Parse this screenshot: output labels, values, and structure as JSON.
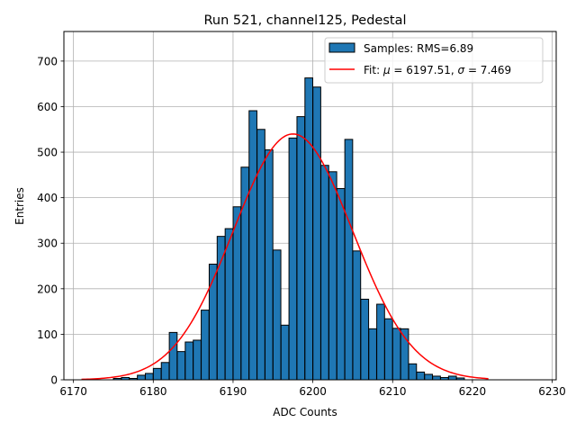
{
  "chart_data": {
    "type": "bar",
    "title": "Run 521, channel125, Pedestal",
    "xlabel": "ADC Counts",
    "ylabel": "Entries",
    "xlim": [
      6168.8,
      6230.5
    ],
    "ylim": [
      0,
      765
    ],
    "xticks": [
      6170,
      6180,
      6190,
      6200,
      6210,
      6220,
      6230
    ],
    "yticks": [
      0,
      100,
      200,
      300,
      400,
      500,
      600,
      700
    ],
    "grid": true,
    "legend_position": "top-right",
    "bar_color": "#1f77b4",
    "fit_color": "#ff0000",
    "bin_width": 0.98,
    "bins": [
      [
        6175.5,
        3
      ],
      [
        6176.5,
        5
      ],
      [
        6177.5,
        3
      ],
      [
        6178.5,
        10
      ],
      [
        6179.5,
        14
      ],
      [
        6180.5,
        25
      ],
      [
        6181.5,
        38
      ],
      [
        6182.5,
        104
      ],
      [
        6183.5,
        62
      ],
      [
        6184.5,
        83
      ],
      [
        6185.5,
        87
      ],
      [
        6186.5,
        153
      ],
      [
        6187.5,
        254
      ],
      [
        6188.5,
        315
      ],
      [
        6189.5,
        332
      ],
      [
        6190.5,
        380
      ],
      [
        6191.5,
        467
      ],
      [
        6192.5,
        591
      ],
      [
        6193.5,
        550
      ],
      [
        6194.5,
        505
      ],
      [
        6195.5,
        285
      ],
      [
        6196.5,
        120
      ],
      [
        6197.5,
        531
      ],
      [
        6198.5,
        578
      ],
      [
        6199.5,
        663
      ],
      [
        6200.5,
        643
      ],
      [
        6201.5,
        471
      ],
      [
        6202.5,
        457
      ],
      [
        6203.5,
        420
      ],
      [
        6204.5,
        528
      ],
      [
        6205.5,
        283
      ],
      [
        6206.5,
        177
      ],
      [
        6207.5,
        112
      ],
      [
        6208.5,
        166
      ],
      [
        6209.5,
        134
      ],
      [
        6210.5,
        113
      ],
      [
        6211.5,
        112
      ],
      [
        6212.5,
        35
      ],
      [
        6213.5,
        17
      ],
      [
        6214.5,
        12
      ],
      [
        6215.5,
        8
      ],
      [
        6216.5,
        5
      ],
      [
        6217.5,
        8
      ],
      [
        6218.5,
        4
      ]
    ],
    "fit": {
      "mu": 6197.51,
      "sigma": 7.469,
      "amplitude": 540,
      "range": [
        6171,
        6222
      ]
    },
    "legend": {
      "samples_label": "Samples: RMS=6.89",
      "fit_prefix": "Fit: ",
      "fit_mu": "μ",
      "fit_mid": " = 6197.51, ",
      "fit_sigma": "σ",
      "fit_suffix": " = 7.469"
    }
  }
}
